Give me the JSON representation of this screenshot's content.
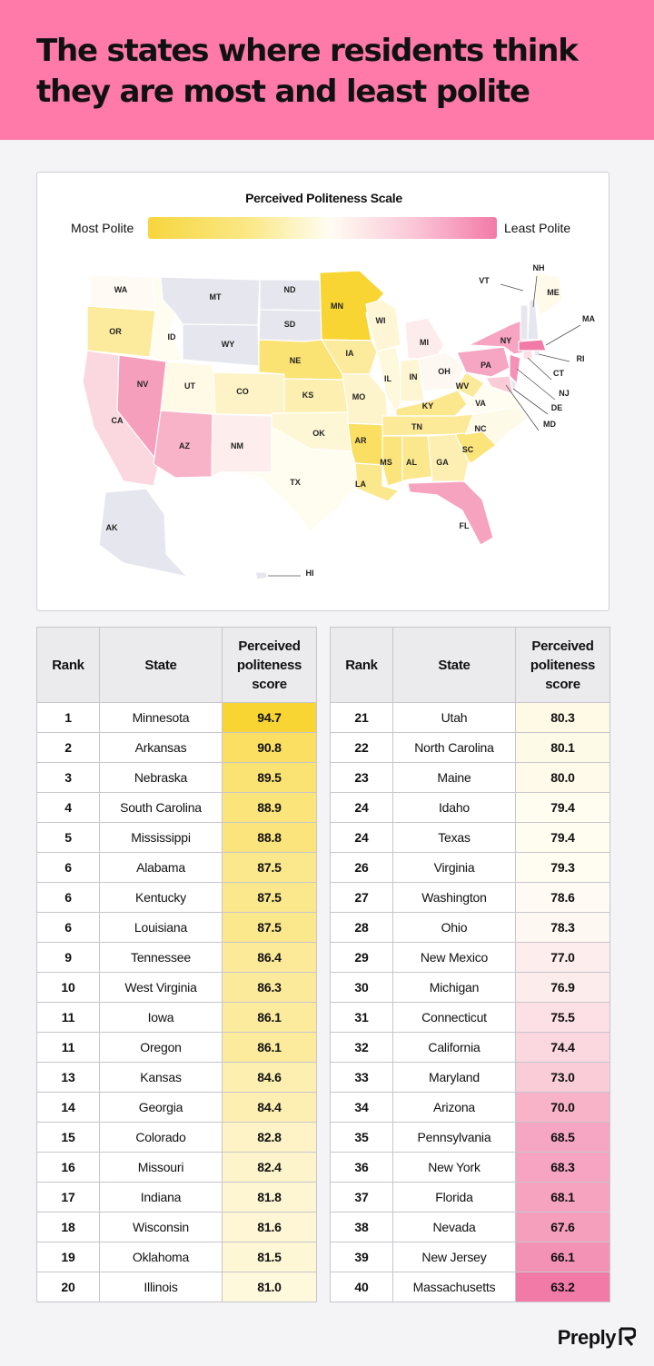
{
  "title": {
    "line1": "The states where residents think",
    "line2": "they are most and least polite"
  },
  "scale": {
    "title": "Perceived Politeness Scale",
    "left_label": "Most Polite",
    "right_label": "Least Polite"
  },
  "colors": {
    "header": "#ff7aa8",
    "most_polite": "#f7d63d",
    "neutral": "#fffdf3",
    "least_polite": "#f27aa7",
    "no_data": "#e6e6ee"
  },
  "map_states": {
    "WA": 78.6,
    "OR": 86.1,
    "CA": 74.4,
    "NV": 67.6,
    "ID": 79.4,
    "MT": null,
    "WY": null,
    "UT": 80.3,
    "AZ": 70.0,
    "CO": 82.8,
    "NM": 77.0,
    "ND": null,
    "SD": null,
    "NE": 89.5,
    "KS": 84.6,
    "OK": 81.5,
    "TX": 79.4,
    "MN": 94.7,
    "IA": 86.1,
    "MO": 82.4,
    "AR": 90.8,
    "LA": 87.5,
    "WI": 81.6,
    "IL": 81.0,
    "MI": 76.9,
    "IN": 81.8,
    "OH": 78.3,
    "KY": 87.5,
    "TN": 86.4,
    "MS": 88.8,
    "AL": 87.5,
    "GA": 84.4,
    "FL": 68.1,
    "SC": 88.9,
    "NC": 80.1,
    "VA": 79.3,
    "WV": 86.3,
    "PA": 68.5,
    "NY": 68.3,
    "ME": 80.0,
    "VT": null,
    "NH": null,
    "MA": 63.2,
    "RI": null,
    "CT": 75.5,
    "NJ": 66.1,
    "DE": null,
    "MD": 73.0,
    "AK": null,
    "HI": null
  },
  "table": {
    "headers": {
      "rank": "Rank",
      "state": "State",
      "score_lines": [
        "Perceived",
        "politeness",
        "score"
      ]
    },
    "rows": [
      {
        "rank": "1",
        "state": "Minnesota",
        "score": "94.7"
      },
      {
        "rank": "2",
        "state": "Arkansas",
        "score": "90.8"
      },
      {
        "rank": "3",
        "state": "Nebraska",
        "score": "89.5"
      },
      {
        "rank": "4",
        "state": "South Carolina",
        "score": "88.9"
      },
      {
        "rank": "5",
        "state": "Mississippi",
        "score": "88.8"
      },
      {
        "rank": "6",
        "state": "Alabama",
        "score": "87.5"
      },
      {
        "rank": "6",
        "state": "Kentucky",
        "score": "87.5"
      },
      {
        "rank": "6",
        "state": "Louisiana",
        "score": "87.5"
      },
      {
        "rank": "9",
        "state": "Tennessee",
        "score": "86.4"
      },
      {
        "rank": "10",
        "state": "West Virginia",
        "score": "86.3"
      },
      {
        "rank": "11",
        "state": "Iowa",
        "score": "86.1"
      },
      {
        "rank": "11",
        "state": "Oregon",
        "score": "86.1"
      },
      {
        "rank": "13",
        "state": "Kansas",
        "score": "84.6"
      },
      {
        "rank": "14",
        "state": "Georgia",
        "score": "84.4"
      },
      {
        "rank": "15",
        "state": "Colorado",
        "score": "82.8"
      },
      {
        "rank": "16",
        "state": "Missouri",
        "score": "82.4"
      },
      {
        "rank": "17",
        "state": "Indiana",
        "score": "81.8"
      },
      {
        "rank": "18",
        "state": "Wisconsin",
        "score": "81.6"
      },
      {
        "rank": "19",
        "state": "Oklahoma",
        "score": "81.5"
      },
      {
        "rank": "20",
        "state": "Illinois",
        "score": "81.0"
      },
      {
        "rank": "21",
        "state": "Utah",
        "score": "80.3"
      },
      {
        "rank": "22",
        "state": "North Carolina",
        "score": "80.1"
      },
      {
        "rank": "23",
        "state": "Maine",
        "score": "80.0"
      },
      {
        "rank": "24",
        "state": "Idaho",
        "score": "79.4"
      },
      {
        "rank": "24",
        "state": "Texas",
        "score": "79.4"
      },
      {
        "rank": "26",
        "state": "Virginia",
        "score": "79.3"
      },
      {
        "rank": "27",
        "state": "Washington",
        "score": "78.6"
      },
      {
        "rank": "28",
        "state": "Ohio",
        "score": "78.3"
      },
      {
        "rank": "29",
        "state": "New Mexico",
        "score": "77.0"
      },
      {
        "rank": "30",
        "state": "Michigan",
        "score": "76.9"
      },
      {
        "rank": "31",
        "state": "Connecticut",
        "score": "75.5"
      },
      {
        "rank": "32",
        "state": "California",
        "score": "74.4"
      },
      {
        "rank": "33",
        "state": "Maryland",
        "score": "73.0"
      },
      {
        "rank": "34",
        "state": "Arizona",
        "score": "70.0"
      },
      {
        "rank": "35",
        "state": "Pennsylvania",
        "score": "68.5"
      },
      {
        "rank": "36",
        "state": "New York",
        "score": "68.3"
      },
      {
        "rank": "37",
        "state": "Florida",
        "score": "68.1"
      },
      {
        "rank": "38",
        "state": "Nevada",
        "score": "67.6"
      },
      {
        "rank": "39",
        "state": "New Jersey",
        "score": "66.1"
      },
      {
        "rank": "40",
        "state": "Massachusetts",
        "score": "63.2"
      }
    ]
  },
  "brand": {
    "name": "Preply",
    "icon": "preply-logo-icon"
  }
}
